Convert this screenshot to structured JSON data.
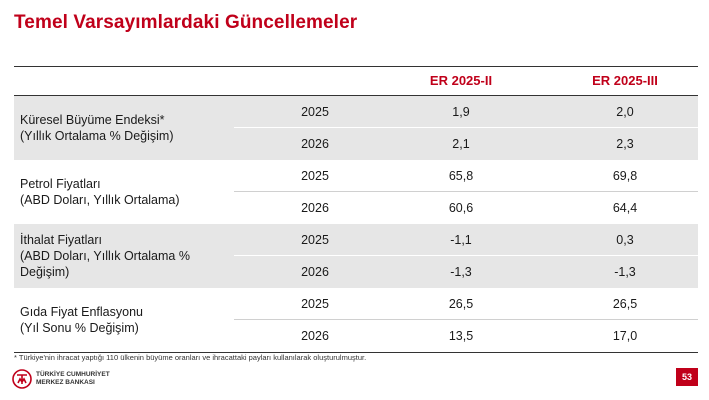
{
  "title": "Temel Varsayımlardaki Güncellemeler",
  "columns": [
    "ER 2025-II",
    "ER 2025-III"
  ],
  "groups": [
    {
      "label_lines": [
        "Küresel Büyüme Endeksi*",
        "(Yıllık Ortalama % Değişim)"
      ],
      "rows": [
        {
          "year": "2025",
          "v1": "1,9",
          "v2": "2,0"
        },
        {
          "year": "2026",
          "v1": "2,1",
          "v2": "2,3"
        }
      ]
    },
    {
      "label_lines": [
        "Petrol Fiyatları",
        "(ABD Doları, Yıllık Ortalama)"
      ],
      "rows": [
        {
          "year": "2025",
          "v1": "65,8",
          "v2": "69,8"
        },
        {
          "year": "2026",
          "v1": "60,6",
          "v2": "64,4"
        }
      ]
    },
    {
      "label_lines": [
        "İthalat Fiyatları",
        "(ABD Doları, Yıllık Ortalama %",
        "Değişim)"
      ],
      "rows": [
        {
          "year": "2025",
          "v1": "-1,1",
          "v2": "0,3"
        },
        {
          "year": "2026",
          "v1": "-1,3",
          "v2": "-1,3"
        }
      ]
    },
    {
      "label_lines": [
        "Gıda Fiyat Enflasyonu",
        "(Yıl Sonu % Değişim)"
      ],
      "rows": [
        {
          "year": "2025",
          "v1": "26,5",
          "v2": "26,5"
        },
        {
          "year": "2026",
          "v1": "13,5",
          "v2": "17,0"
        }
      ]
    }
  ],
  "footnote": "* Türkiye'nin ihracat yaptığı 110 ülkenin büyüme oranları ve ihracattaki payları kullanılarak oluşturulmuştur.",
  "logo": {
    "line1": "TÜRKİYE CUMHURİYET",
    "line2": "MERKEZ BANKASI",
    "icon": "tcmb-logo-icon",
    "color": "#c0001a"
  },
  "page_number": "53",
  "colors": {
    "accent": "#c0001a",
    "shade": "#e6e6e6"
  }
}
